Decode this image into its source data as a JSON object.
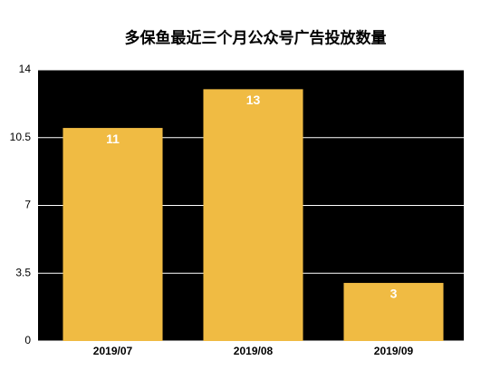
{
  "chart_data": {
    "type": "bar",
    "title": "多保鱼最近三个月公众号广告投放数量",
    "categories": [
      "2019/07",
      "2019/08",
      "2019/09"
    ],
    "values": [
      11,
      13,
      3
    ],
    "color": "#f0bb43",
    "plot_background": "#000000",
    "grid_color": "#ffffff",
    "ylim": [
      0,
      14
    ],
    "yticks": [
      0,
      3.5,
      7,
      10.5,
      14
    ],
    "grid": true,
    "data_labels": true
  }
}
